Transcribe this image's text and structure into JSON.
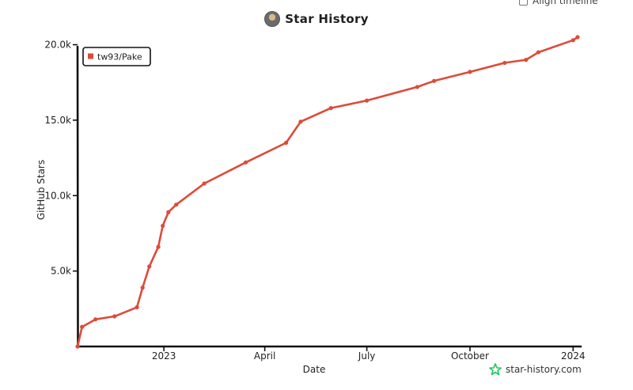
{
  "header": {
    "title": "Star History",
    "avatar_icon": "user-avatar-icon"
  },
  "align_toggle": {
    "label": "Align timeline",
    "checked": false
  },
  "watermark": {
    "text": "star-history.com",
    "icon": "star-logo-icon",
    "color": "#22c55e"
  },
  "chart_data": {
    "type": "line",
    "xlabel": "Date",
    "ylabel": "GitHub Stars",
    "x_tick_labels": [
      "2023",
      "April",
      "July",
      "October",
      "2024"
    ],
    "y_tick_labels": [
      "5.0k",
      "10.0k",
      "15.0k",
      "20.0k"
    ],
    "y_ticks": [
      5000,
      10000,
      15000,
      20000
    ],
    "ylim": [
      0,
      20500
    ],
    "xlim": [
      "2022-10-16",
      "2024-01-05"
    ],
    "x_ticks": [
      "2023-01-01",
      "2023-04-01",
      "2023-07-01",
      "2023-10-01",
      "2024-01-01"
    ],
    "grid": false,
    "legend_position": "top-left",
    "series": [
      {
        "name": "tw93/Pake",
        "color": "#dd4b39",
        "points": [
          {
            "x": "2022-10-16",
            "y": 0
          },
          {
            "x": "2022-10-20",
            "y": 1300
          },
          {
            "x": "2022-11-01",
            "y": 1800
          },
          {
            "x": "2022-11-18",
            "y": 2000
          },
          {
            "x": "2022-12-08",
            "y": 2600
          },
          {
            "x": "2022-12-13",
            "y": 3900
          },
          {
            "x": "2022-12-19",
            "y": 5300
          },
          {
            "x": "2022-12-27",
            "y": 6600
          },
          {
            "x": "2022-12-31",
            "y": 8000
          },
          {
            "x": "2023-01-05",
            "y": 8900
          },
          {
            "x": "2023-01-12",
            "y": 9400
          },
          {
            "x": "2023-02-06",
            "y": 10800
          },
          {
            "x": "2023-03-15",
            "y": 12200
          },
          {
            "x": "2023-04-20",
            "y": 13500
          },
          {
            "x": "2023-05-03",
            "y": 14900
          },
          {
            "x": "2023-05-30",
            "y": 15800
          },
          {
            "x": "2023-07-01",
            "y": 16300
          },
          {
            "x": "2023-08-15",
            "y": 17200
          },
          {
            "x": "2023-08-30",
            "y": 17600
          },
          {
            "x": "2023-10-01",
            "y": 18200
          },
          {
            "x": "2023-11-01",
            "y": 18800
          },
          {
            "x": "2023-11-20",
            "y": 19000
          },
          {
            "x": "2023-12-01",
            "y": 19500
          },
          {
            "x": "2024-01-01",
            "y": 20300
          },
          {
            "x": "2024-01-05",
            "y": 20500
          }
        ]
      }
    ]
  }
}
